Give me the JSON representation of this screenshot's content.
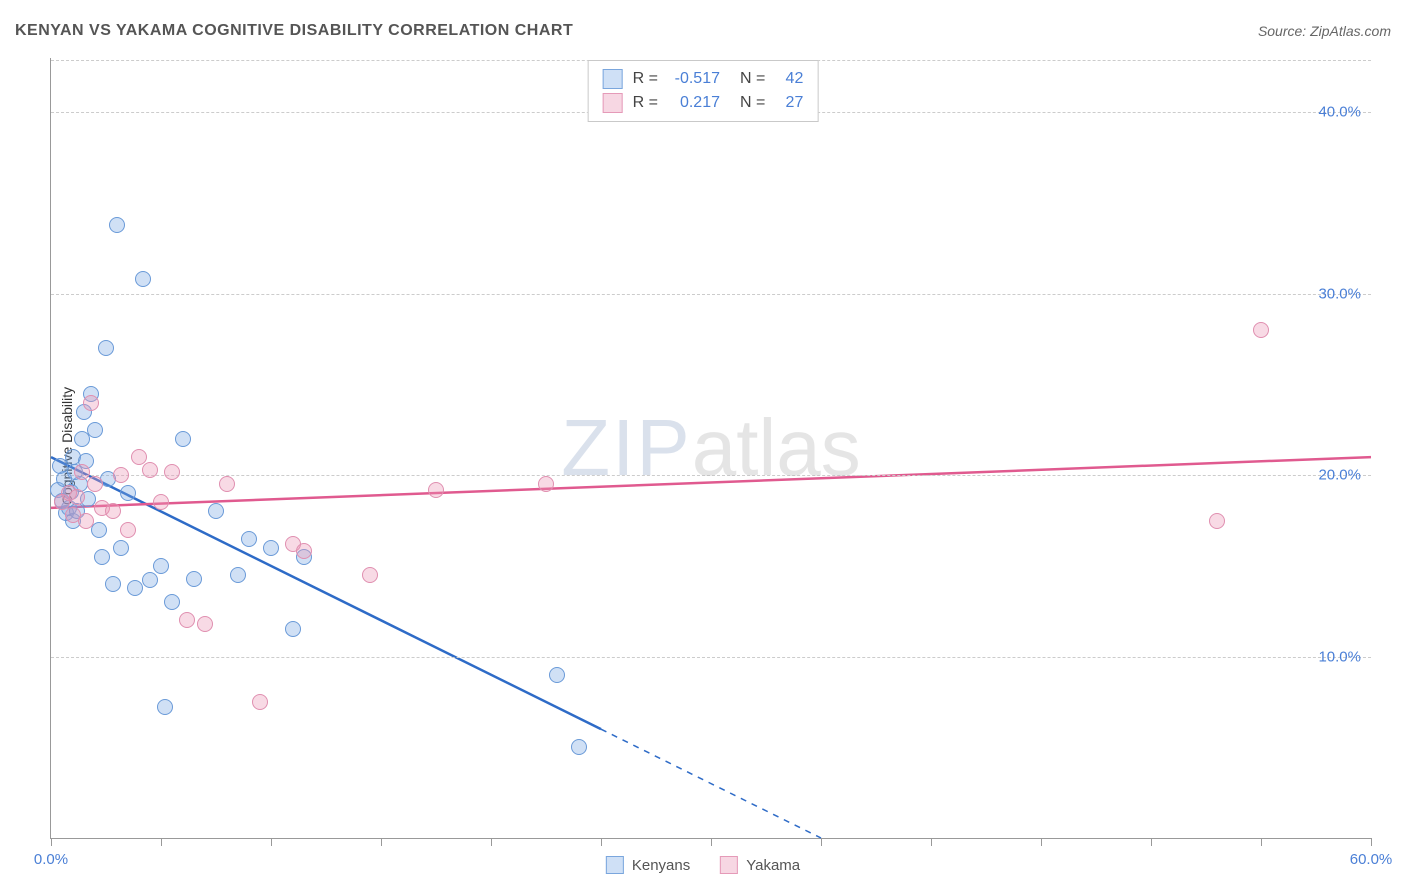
{
  "title": "KENYAN VS YAKAMA COGNITIVE DISABILITY CORRELATION CHART",
  "source_label": "Source: ZipAtlas.com",
  "ylabel": "Cognitive Disability",
  "watermark": {
    "part1": "ZIP",
    "part2": "atlas"
  },
  "chart": {
    "type": "scatter",
    "background_color": "#ffffff",
    "grid_color": "#cccccc",
    "axis_color": "#999999",
    "tick_label_color": "#4a7fd6",
    "xlim": [
      0,
      60
    ],
    "ylim": [
      0,
      43
    ],
    "xticks": [
      0,
      5,
      10,
      15,
      20,
      25,
      30,
      35,
      40,
      45,
      50,
      55,
      60
    ],
    "xtick_labels": {
      "0": "0.0%",
      "60": "60.0%"
    },
    "yticks": [
      10,
      20,
      30,
      40
    ],
    "ytick_labels": {
      "10": "10.0%",
      "20": "20.0%",
      "30": "30.0%",
      "40": "40.0%"
    },
    "marker_radius": 8,
    "marker_stroke_width": 1.5,
    "series": [
      {
        "name": "Kenyans",
        "color_fill": "rgba(120,165,225,0.35)",
        "color_stroke": "#6a9ad8",
        "swatch_fill": "#cfe0f6",
        "swatch_border": "#7aa6dd",
        "R": "-0.517",
        "N": "42",
        "trend": {
          "x1": 0,
          "y1": 21,
          "x2": 25,
          "y2": 6,
          "extrap_x2": 35,
          "extrap_y2": 0,
          "color": "#2e6bc7",
          "width": 2.5
        },
        "points": [
          [
            0.3,
            19.2
          ],
          [
            0.4,
            20.5
          ],
          [
            0.5,
            18.6
          ],
          [
            0.6,
            19.8
          ],
          [
            0.7,
            17.9
          ],
          [
            0.8,
            18.2
          ],
          [
            0.9,
            19.1
          ],
          [
            1.0,
            21.0
          ],
          [
            1.0,
            17.5
          ],
          [
            1.1,
            20.2
          ],
          [
            1.2,
            18.0
          ],
          [
            1.3,
            19.5
          ],
          [
            1.4,
            22.0
          ],
          [
            1.5,
            23.5
          ],
          [
            1.6,
            20.8
          ],
          [
            1.8,
            24.5
          ],
          [
            2.0,
            22.5
          ],
          [
            2.2,
            17.0
          ],
          [
            2.3,
            15.5
          ],
          [
            2.5,
            27.0
          ],
          [
            2.8,
            14.0
          ],
          [
            3.0,
            33.8
          ],
          [
            3.2,
            16.0
          ],
          [
            3.5,
            19.0
          ],
          [
            3.8,
            13.8
          ],
          [
            4.2,
            30.8
          ],
          [
            4.5,
            14.2
          ],
          [
            5.0,
            15.0
          ],
          [
            5.2,
            7.2
          ],
          [
            5.5,
            13.0
          ],
          [
            6.0,
            22.0
          ],
          [
            6.5,
            14.3
          ],
          [
            7.5,
            18.0
          ],
          [
            8.5,
            14.5
          ],
          [
            9.0,
            16.5
          ],
          [
            10.0,
            16.0
          ],
          [
            11.0,
            11.5
          ],
          [
            11.5,
            15.5
          ],
          [
            23.0,
            9.0
          ],
          [
            24.0,
            5.0
          ],
          [
            1.7,
            18.7
          ],
          [
            2.6,
            19.8
          ]
        ]
      },
      {
        "name": "Yakama",
        "color_fill": "rgba(235,150,180,0.35)",
        "color_stroke": "#e08fb0",
        "swatch_fill": "#f7d7e3",
        "swatch_border": "#e59ab8",
        "R": "0.217",
        "N": "27",
        "trend": {
          "x1": 0,
          "y1": 18.2,
          "x2": 60,
          "y2": 21.0,
          "color": "#e05a8f",
          "width": 2.5
        },
        "points": [
          [
            0.5,
            18.5
          ],
          [
            0.8,
            19.0
          ],
          [
            1.0,
            17.8
          ],
          [
            1.2,
            18.8
          ],
          [
            1.4,
            20.2
          ],
          [
            1.6,
            17.5
          ],
          [
            1.8,
            24.0
          ],
          [
            2.0,
            19.5
          ],
          [
            2.3,
            18.2
          ],
          [
            2.8,
            18.0
          ],
          [
            3.2,
            20.0
          ],
          [
            4.0,
            21.0
          ],
          [
            4.5,
            20.3
          ],
          [
            5.5,
            20.2
          ],
          [
            6.2,
            12.0
          ],
          [
            7.0,
            11.8
          ],
          [
            8.0,
            19.5
          ],
          [
            9.5,
            7.5
          ],
          [
            11.0,
            16.2
          ],
          [
            11.5,
            15.8
          ],
          [
            14.5,
            14.5
          ],
          [
            17.5,
            19.2
          ],
          [
            22.5,
            19.5
          ],
          [
            53.0,
            17.5
          ],
          [
            55.0,
            28.0
          ],
          [
            3.5,
            17.0
          ],
          [
            5.0,
            18.5
          ]
        ]
      }
    ]
  },
  "legend_top": {
    "rows": [
      {
        "swatch_series": 0,
        "r_label": "R =",
        "r_value": "-0.517",
        "n_label": "N =",
        "n_value": "42"
      },
      {
        "swatch_series": 1,
        "r_label": "R =",
        "r_value": "0.217",
        "n_label": "N =",
        "n_value": "27"
      }
    ]
  },
  "legend_bottom": {
    "items": [
      {
        "swatch_series": 0,
        "label": "Kenyans"
      },
      {
        "swatch_series": 1,
        "label": "Yakama"
      }
    ]
  }
}
